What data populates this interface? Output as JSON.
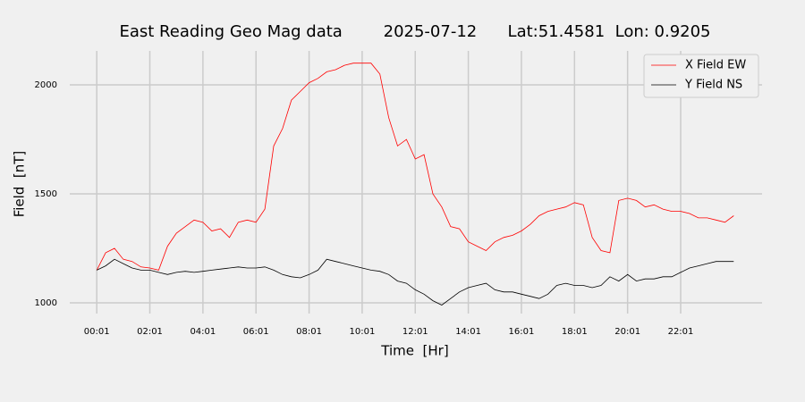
{
  "chart_data": {
    "type": "line",
    "title": "East Reading Geo Mag data        2025-07-12      Lat:51.4581  Lon: 0.9205",
    "xlabel": "Time  [Hr]",
    "ylabel": "Field  [nT]",
    "x": [
      1,
      21,
      41,
      61,
      81,
      101,
      121,
      141,
      161,
      181,
      201,
      221,
      241,
      261,
      281,
      301,
      321,
      341,
      361,
      381,
      401,
      421,
      441,
      461,
      481,
      501,
      521,
      541,
      561,
      581,
      601,
      621,
      641,
      661,
      681,
      701,
      721,
      741,
      761,
      781,
      801,
      821,
      841,
      861,
      881,
      901,
      921,
      941,
      961,
      981,
      1001,
      1021,
      1041,
      1061,
      1081,
      1101,
      1121,
      1141,
      1161,
      1181,
      1201,
      1221,
      1241,
      1261,
      1281,
      1301,
      1321,
      1341,
      1361,
      1381,
      1401,
      1421,
      1441
    ],
    "series": [
      {
        "name": "X Field EW",
        "color": "#ff0000",
        "values": [
          1150,
          1230,
          1250,
          1200,
          1190,
          1165,
          1160,
          1150,
          1260,
          1320,
          1350,
          1380,
          1370,
          1330,
          1340,
          1300,
          1370,
          1380,
          1370,
          1430,
          1720,
          1800,
          1930,
          1970,
          2010,
          2030,
          2060,
          2070,
          2090,
          2100,
          2100,
          2100,
          2050,
          1850,
          1720,
          1750,
          1660,
          1680,
          1500,
          1440,
          1350,
          1340,
          1280,
          1260,
          1240,
          1280,
          1300,
          1310,
          1330,
          1360,
          1400,
          1420,
          1430,
          1440,
          1460,
          1450,
          1300,
          1240,
          1230,
          1470,
          1480,
          1470,
          1440,
          1450,
          1430,
          1420,
          1420,
          1410,
          1390,
          1390,
          1380,
          1370,
          1400
        ]
      },
      {
        "name": "Y Field NS",
        "color": "#000000",
        "values": [
          1150,
          1170,
          1200,
          1180,
          1160,
          1150,
          1150,
          1140,
          1130,
          1140,
          1145,
          1140,
          1145,
          1150,
          1155,
          1160,
          1165,
          1160,
          1160,
          1165,
          1150,
          1130,
          1120,
          1115,
          1130,
          1150,
          1200,
          1190,
          1180,
          1170,
          1160,
          1150,
          1145,
          1130,
          1100,
          1090,
          1060,
          1040,
          1010,
          990,
          1020,
          1050,
          1070,
          1080,
          1090,
          1060,
          1050,
          1050,
          1040,
          1030,
          1020,
          1040,
          1080,
          1090,
          1080,
          1080,
          1070,
          1080,
          1120,
          1100,
          1130,
          1100,
          1110,
          1110,
          1120,
          1120,
          1140,
          1160,
          1170,
          1180,
          1190,
          1190,
          1190
        ]
      }
    ],
    "xlim": [
      -60,
      1505
    ],
    "xticks": [
      {
        "value": 1,
        "label": "00:01"
      },
      {
        "value": 121,
        "label": "02:01"
      },
      {
        "value": 241,
        "label": "04:01"
      },
      {
        "value": 361,
        "label": "06:01"
      },
      {
        "value": 481,
        "label": "08:01"
      },
      {
        "value": 601,
        "label": "10:01"
      },
      {
        "value": 721,
        "label": "12:01"
      },
      {
        "value": 841,
        "label": "14:01"
      },
      {
        "value": 961,
        "label": "16:01"
      },
      {
        "value": 1081,
        "label": "18:01"
      },
      {
        "value": 1201,
        "label": "20:01"
      },
      {
        "value": 1321,
        "label": "22:01"
      }
    ],
    "ylim": [
      951,
      2156
    ],
    "yticks": [
      1000,
      1500,
      2000
    ],
    "grid": true,
    "legend": "upper right"
  }
}
